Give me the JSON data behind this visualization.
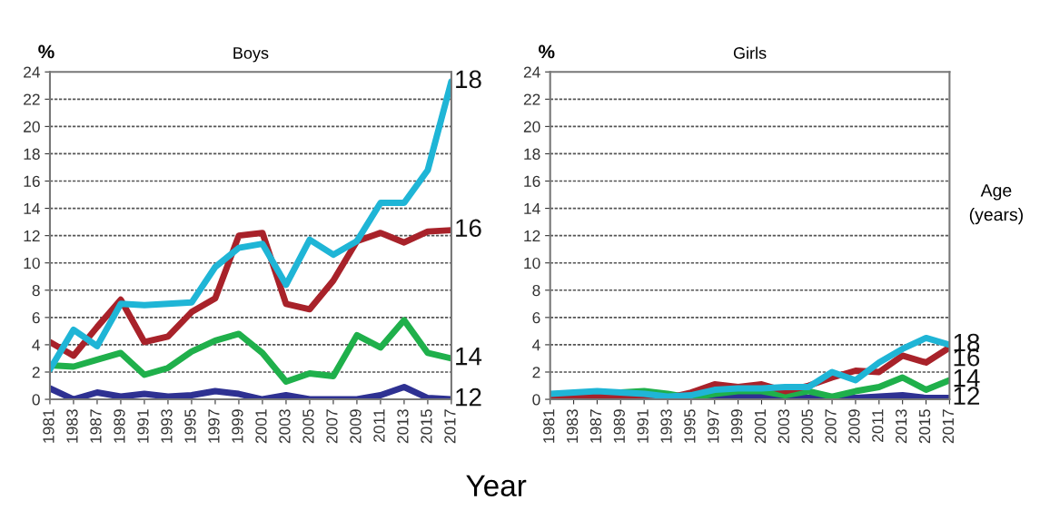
{
  "chart_data": [
    {
      "type": "line",
      "title": "Boys",
      "ylabel": "%",
      "xlabel": "Year",
      "annotations": [
        "Age (years)"
      ],
      "categories": [
        "1981",
        "1983",
        "1987",
        "1989",
        "1991",
        "1993",
        "1995",
        "1997",
        "1999",
        "2001",
        "2003",
        "2005",
        "2007",
        "2009",
        "2011",
        "2013",
        "2015",
        "2017"
      ],
      "ylim": [
        0,
        24
      ],
      "yticks": [
        0,
        2,
        4,
        6,
        8,
        10,
        12,
        14,
        16,
        18,
        20,
        22,
        24
      ],
      "grid": "y",
      "line_style": "solid",
      "marker": "none",
      "series": [
        {
          "name": "12",
          "color": "#2e3192",
          "values": [
            0.8,
            0.0,
            0.5,
            0.2,
            0.4,
            0.2,
            0.3,
            0.6,
            0.4,
            0.0,
            0.3,
            0.0,
            0.0,
            0.0,
            0.3,
            0.9,
            0.1,
            0.0
          ]
        },
        {
          "name": "14",
          "color": "#1fb04b",
          "values": [
            2.5,
            2.4,
            2.9,
            3.4,
            1.8,
            2.3,
            3.5,
            4.3,
            4.8,
            3.4,
            1.3,
            1.9,
            1.7,
            4.7,
            3.8,
            5.8,
            3.4,
            3.0
          ]
        },
        {
          "name": "16",
          "color": "#a8222a",
          "values": [
            4.2,
            3.2,
            5.3,
            7.3,
            4.2,
            4.6,
            6.4,
            7.4,
            12.0,
            12.2,
            7.0,
            6.6,
            8.7,
            11.6,
            12.2,
            11.5,
            12.3,
            12.4
          ]
        },
        {
          "name": "18",
          "color": "#1fb5d6",
          "values": [
            2.2,
            5.1,
            3.9,
            7.0,
            6.9,
            7.0,
            7.1,
            9.7,
            11.1,
            11.4,
            8.4,
            11.7,
            10.6,
            11.6,
            14.4,
            14.4,
            16.8,
            23.3
          ]
        }
      ]
    },
    {
      "type": "line",
      "title": "Girls",
      "ylabel": "%",
      "categories": [
        "1981",
        "1983",
        "1987",
        "1989",
        "1991",
        "1993",
        "1995",
        "1997",
        "1999",
        "2001",
        "2003",
        "2005",
        "2007",
        "2009",
        "2011",
        "2013",
        "2015",
        "2017"
      ],
      "ylim": [
        0,
        24
      ],
      "yticks": [
        0,
        2,
        4,
        6,
        8,
        10,
        12,
        14,
        16,
        18,
        20,
        22,
        24
      ],
      "grid": "y",
      "line_style": "solid",
      "marker": "none",
      "series": [
        {
          "name": "12",
          "color": "#2e3192",
          "values": [
            null,
            null,
            null,
            null,
            null,
            null,
            0.1,
            0.1,
            0.2,
            0.2,
            0.1,
            0.1,
            0.1,
            0.1,
            0.2,
            0.3,
            0.1,
            0.1
          ]
        },
        {
          "name": "14",
          "color": "#1fb04b",
          "values": [
            null,
            null,
            0.5,
            0.5,
            0.6,
            0.4,
            0.1,
            0.4,
            0.6,
            0.6,
            0.3,
            0.6,
            0.2,
            0.6,
            0.9,
            1.6,
            0.7,
            1.4
          ]
        },
        {
          "name": "16",
          "color": "#a8222a",
          "values": [
            0.1,
            0.2,
            0.3,
            0.2,
            0.0,
            0.1,
            0.5,
            1.1,
            0.9,
            1.1,
            0.6,
            1.0,
            1.6,
            2.1,
            2.0,
            3.2,
            2.7,
            3.8
          ]
        },
        {
          "name": "18",
          "color": "#1fb5d6",
          "values": [
            0.4,
            0.5,
            0.6,
            0.5,
            0.4,
            0.2,
            0.3,
            0.7,
            0.8,
            0.8,
            0.9,
            0.9,
            2.0,
            1.4,
            2.7,
            3.7,
            4.5,
            4.0
          ]
        }
      ]
    }
  ]
}
